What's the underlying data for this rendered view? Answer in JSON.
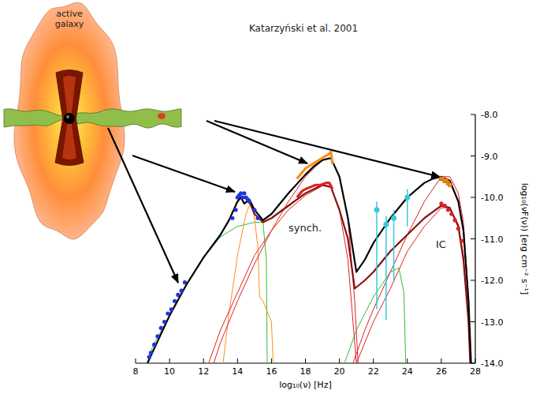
{
  "chart_data": {
    "type": "line",
    "annotations": [
      "Katarzyński et al. 2001",
      "active galaxy",
      "synch.",
      "IC"
    ],
    "x_label": "log₁₀(ν) [Hz]",
    "y_label": "log₁₀(νF(ν)) [erg cm⁻² s⁻¹]",
    "xlim": [
      8,
      28
    ],
    "ylim": [
      -14,
      -8
    ],
    "xticks": [
      8,
      10,
      12,
      14,
      16,
      18,
      20,
      22,
      24,
      26,
      28
    ],
    "yticks": [
      {
        "value": -14,
        "label": "-14.0"
      },
      {
        "value": -13,
        "label": "-13.0"
      },
      {
        "value": -12,
        "label": "-12.0"
      },
      {
        "value": -11,
        "label": "-11.0"
      },
      {
        "value": -10,
        "label": "-10.0"
      },
      {
        "value": -9,
        "label": "-9.0"
      },
      {
        "value": -8,
        "label": "-8.0"
      }
    ],
    "series": [
      {
        "type": "line",
        "color": "#33bb33",
        "line_style": "thin",
        "x": [
          8.7,
          9,
          10,
          11,
          12,
          13,
          14,
          15,
          15.5,
          15.7,
          15.75
        ],
        "values": [
          -14,
          -13.6,
          -12.85,
          -12.1,
          -11.45,
          -10.95,
          -10.7,
          -10.6,
          -10.6,
          -11.5,
          -14
        ]
      },
      {
        "type": "line",
        "color": "#33bb33",
        "line_style": "thin",
        "x": [
          20.3,
          21,
          22,
          23,
          23.5,
          23.8,
          23.9
        ],
        "values": [
          -14,
          -13.2,
          -12.4,
          -11.8,
          -11.7,
          -12.3,
          -14
        ]
      },
      {
        "type": "line",
        "color": "#ff8c1a",
        "line_style": "thin",
        "x": [
          13.15,
          13.5,
          14,
          14.5,
          14.8,
          15,
          15.2,
          15.3,
          15.5,
          15.8,
          16,
          16.1
        ],
        "values": [
          -14,
          -12.8,
          -11.4,
          -10.4,
          -10.1,
          -10.5,
          -11.2,
          -12.4,
          -12.5,
          -12.8,
          -13,
          -14
        ]
      },
      {
        "type": "line",
        "color": "#e02020",
        "line_style": "thin",
        "x": [
          12.3,
          13,
          14,
          15,
          16,
          17,
          18,
          19,
          19.5,
          20,
          20.5,
          20.8,
          21
        ],
        "values": [
          -14,
          -13.2,
          -12.3,
          -11.4,
          -10.8,
          -10.3,
          -9.95,
          -9.72,
          -9.75,
          -10.3,
          -11.5,
          -13,
          -14
        ]
      },
      {
        "type": "line",
        "color": "#e02020",
        "line_style": "thin",
        "x": [
          12.6,
          13,
          14,
          15,
          16,
          17,
          18,
          19,
          19.5,
          20,
          20.5,
          20.9,
          21.1
        ],
        "values": [
          -14,
          -13.5,
          -12.5,
          -11.6,
          -10.8,
          -10.1,
          -9.5,
          -9.1,
          -9.05,
          -9.5,
          -10.5,
          -12.5,
          -14
        ]
      },
      {
        "type": "line",
        "color": "#e02020",
        "line_style": "thin",
        "x": [
          20.8,
          21.5,
          22,
          23,
          24,
          25,
          26,
          26.5,
          27,
          27.3,
          27.6,
          27.75
        ],
        "values": [
          -14,
          -13.2,
          -12.7,
          -11.8,
          -10.9,
          -10.1,
          -9.5,
          -9.5,
          -9.9,
          -10.6,
          -12.4,
          -14
        ]
      },
      {
        "type": "line",
        "color": "#e02020",
        "line_style": "thin",
        "x": [
          21,
          21.5,
          22,
          23,
          24,
          25,
          26,
          26.5,
          27,
          27.3,
          27.6,
          27.7
        ],
        "values": [
          -14,
          -13.5,
          -13,
          -12.2,
          -11.3,
          -10.7,
          -10.25,
          -10.25,
          -10.65,
          -11.4,
          -13,
          -14
        ]
      },
      {
        "type": "line",
        "color": "#8b1010",
        "line_style": "thick",
        "x": [
          14.7,
          15,
          15.5,
          16,
          17,
          18,
          18.5,
          19,
          19.5,
          20,
          20.5,
          20.9,
          21.5,
          22,
          23,
          24,
          25,
          25.5,
          26,
          26.5,
          27,
          27.3,
          27.6,
          27.7
        ],
        "values": [
          -10.1,
          -10.4,
          -10.6,
          -10.5,
          -10.2,
          -9.9,
          -9.8,
          -9.7,
          -9.75,
          -10.3,
          -11,
          -12.2,
          -12,
          -11.8,
          -11.3,
          -10.9,
          -10.5,
          -10.35,
          -10.2,
          -10.25,
          -10.7,
          -11.5,
          -13,
          -14
        ]
      },
      {
        "type": "line",
        "color": "#000000",
        "line_style": "thick",
        "x": [
          8.7,
          10,
          11,
          12,
          13,
          13.5,
          14,
          14.2,
          14.4,
          14.7,
          15,
          15.5,
          16,
          17,
          18,
          18.5,
          19,
          19.5,
          20,
          20.5,
          21,
          21.5,
          22,
          23,
          24,
          25,
          25.5,
          26,
          26.5,
          27,
          27.3,
          27.6,
          27.75
        ],
        "values": [
          -14,
          -12.85,
          -12.1,
          -11.45,
          -10.9,
          -10.55,
          -10.1,
          -10.0,
          -10.15,
          -10.05,
          -10.3,
          -10.55,
          -10.4,
          -9.9,
          -9.45,
          -9.25,
          -9.1,
          -9.05,
          -9.5,
          -10.5,
          -11.8,
          -11.5,
          -11.1,
          -10.5,
          -10.0,
          -9.65,
          -9.55,
          -9.5,
          -9.6,
          -10.1,
          -10.8,
          -12.5,
          -14
        ]
      },
      {
        "type": "line",
        "color": "#ff8c1a",
        "line_style": "heavy",
        "x": [
          17.5,
          17.8,
          18.0,
          18.2,
          18.4,
          18.6,
          18.8,
          19.0,
          19.2,
          19.4,
          19.5,
          19.6
        ],
        "values": [
          -9.55,
          -9.4,
          -9.3,
          -9.25,
          -9.2,
          -9.15,
          -9.1,
          -9.05,
          -9.0,
          -8.95,
          -8.9,
          -9.2
        ]
      },
      {
        "type": "line",
        "color": "#dd2222",
        "line_style": "heavy",
        "x": [
          17.5,
          17.8,
          18.0,
          18.3,
          18.6,
          18.9,
          19.2,
          19.4,
          19.6
        ],
        "values": [
          -10.0,
          -9.85,
          -9.8,
          -9.75,
          -9.7,
          -9.7,
          -9.65,
          -9.65,
          -9.8
        ]
      },
      {
        "type": "scatter",
        "color": "#2233dd",
        "marker": "circle",
        "x": [
          8.8,
          8.9,
          9.1,
          9.3,
          9.5,
          9.7,
          9.9,
          10.1,
          10.3,
          10.5,
          10.7,
          10.9,
          13.7,
          13.9,
          14.0,
          14.1,
          14.2,
          14.3,
          14.4,
          14.5,
          14.6,
          14.7,
          15.0,
          15.2
        ],
        "values": [
          -13.85,
          -13.75,
          -13.55,
          -13.35,
          -13.15,
          -13.0,
          -12.8,
          -12.7,
          -12.5,
          -12.35,
          -12.25,
          -12.05,
          -10.5,
          -10.3,
          -10.0,
          -9.95,
          -9.9,
          -10.0,
          -9.9,
          -10.0,
          -10.05,
          -10.1,
          -10.3,
          -10.5
        ]
      },
      {
        "type": "scatter",
        "color": "#33ccdd",
        "marker": "circle",
        "x": [
          22.2,
          22.75,
          23.2,
          24.0
        ],
        "values": [
          -10.3,
          -10.65,
          -10.5,
          -10.0
        ],
        "errors_minus": [
          2.4,
          2.3,
          1.5,
          0.7
        ],
        "errors_plus": [
          0.2,
          0.2,
          0.2,
          0.2
        ]
      },
      {
        "type": "scatter",
        "color": "#ff8c1a",
        "marker": "square",
        "x": [
          26.0,
          26.1,
          26.2,
          26.3,
          26.4,
          26.5
        ],
        "values": [
          -9.55,
          -9.55,
          -9.6,
          -9.6,
          -9.65,
          -9.7
        ]
      },
      {
        "type": "scatter",
        "color": "#dd2222",
        "marker": "circle",
        "x": [
          26.0,
          26.2,
          26.4,
          26.6,
          26.8,
          27.0,
          27.2
        ],
        "values": [
          -10.15,
          -10.2,
          -10.3,
          -10.4,
          -10.55,
          -10.75,
          -11.05
        ]
      }
    ]
  }
}
